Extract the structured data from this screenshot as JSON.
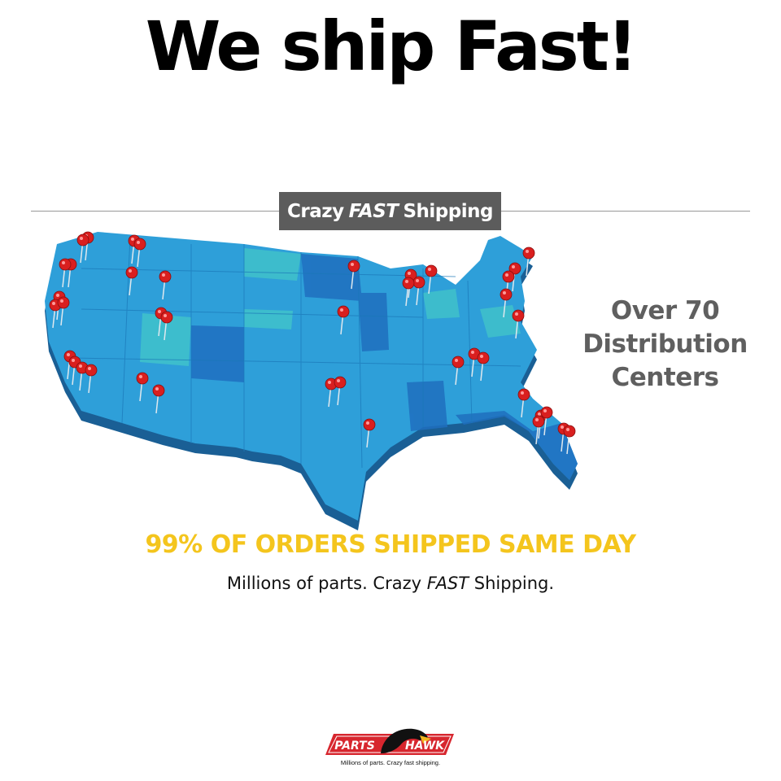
{
  "headline": "We ship Fast!",
  "banner": {
    "part1": "Crazy",
    "part2": "FAST",
    "part3": "Shipping"
  },
  "side_text": [
    "Over 70",
    "Distribution",
    "Centers"
  ],
  "map": {
    "land_color": "#2e9fd9",
    "shadow_color": "#1a5f95",
    "pin_color": "#d91f1f"
  },
  "highlight": "99% OF ORDERS SHIPPED SAME DAY",
  "tagline": {
    "part1": "Millions of parts. Crazy ",
    "part2": "FAST",
    "part3": " Shipping."
  },
  "logo": {
    "left": "PARTS",
    "right": "HAWK",
    "slogan": "Millions of parts. Crazy fast shipping.",
    "color": "#d7262e"
  }
}
